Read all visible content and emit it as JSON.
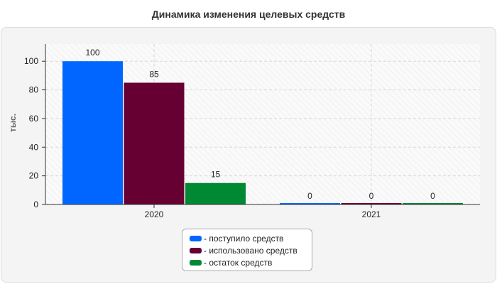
{
  "chart_data": {
    "type": "bar",
    "title": "Динамика изменения целевых средств",
    "xlabel": "",
    "ylabel": "тыс.",
    "categories": [
      "2020",
      "2021"
    ],
    "series": [
      {
        "name": "- поступило средств",
        "color": "#0066ff",
        "values": [
          100,
          0
        ]
      },
      {
        "name": "- использовано средств",
        "color": "#660033",
        "values": [
          85,
          0
        ]
      },
      {
        "name": "- остаток средств",
        "color": "#008833",
        "values": [
          15,
          0
        ]
      }
    ],
    "ylim": [
      0,
      112
    ],
    "yticks": [
      0,
      20,
      40,
      60,
      80,
      100
    ],
    "grid": true,
    "legend_position": "bottom"
  }
}
